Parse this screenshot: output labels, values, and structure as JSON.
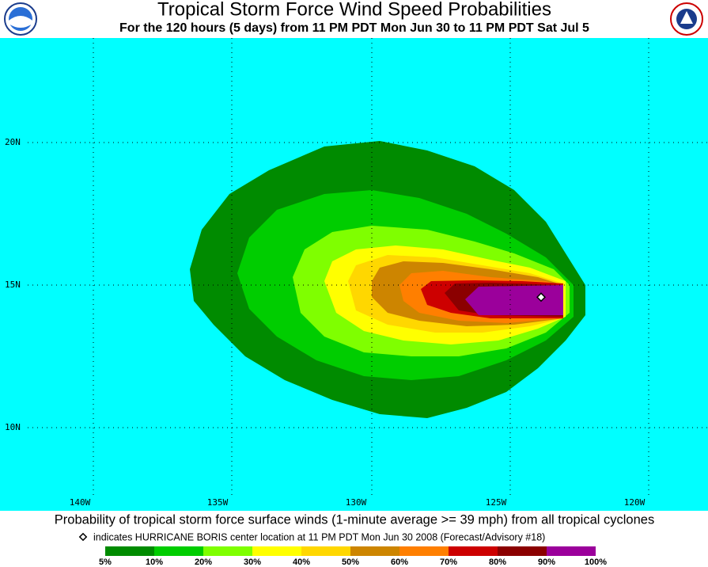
{
  "header": {
    "title": "Tropical Storm Force Wind Speed Probabilities",
    "subtitle": "For the 120 hours (5 days) from 11 PM PDT Mon Jun 30 to 11 PM PDT Sat Jul 5"
  },
  "map": {
    "lat_labels": [
      "20N",
      "15N",
      "10N"
    ],
    "lon_labels": [
      "140W",
      "135W",
      "130W",
      "125W",
      "120W"
    ]
  },
  "footer": {
    "caption": "Probability of tropical storm force surface winds (1-minute average >= 39 mph) from all tropical cyclones",
    "note": "indicates HURRICANE BORIS center location at 11 PM PDT Mon Jun 30 2008 (Forecast/Advisory #18)"
  },
  "legend": {
    "labels": [
      "5%",
      "10%",
      "20%",
      "30%",
      "40%",
      "50%",
      "60%",
      "70%",
      "80%",
      "90%",
      "100%"
    ],
    "colors": [
      "#008b00",
      "#00cd00",
      "#7fff00",
      "#ffff00",
      "#ffd700",
      "#cd8500",
      "#ff7f00",
      "#cd0000",
      "#8b0000",
      "#9b009b"
    ]
  }
}
